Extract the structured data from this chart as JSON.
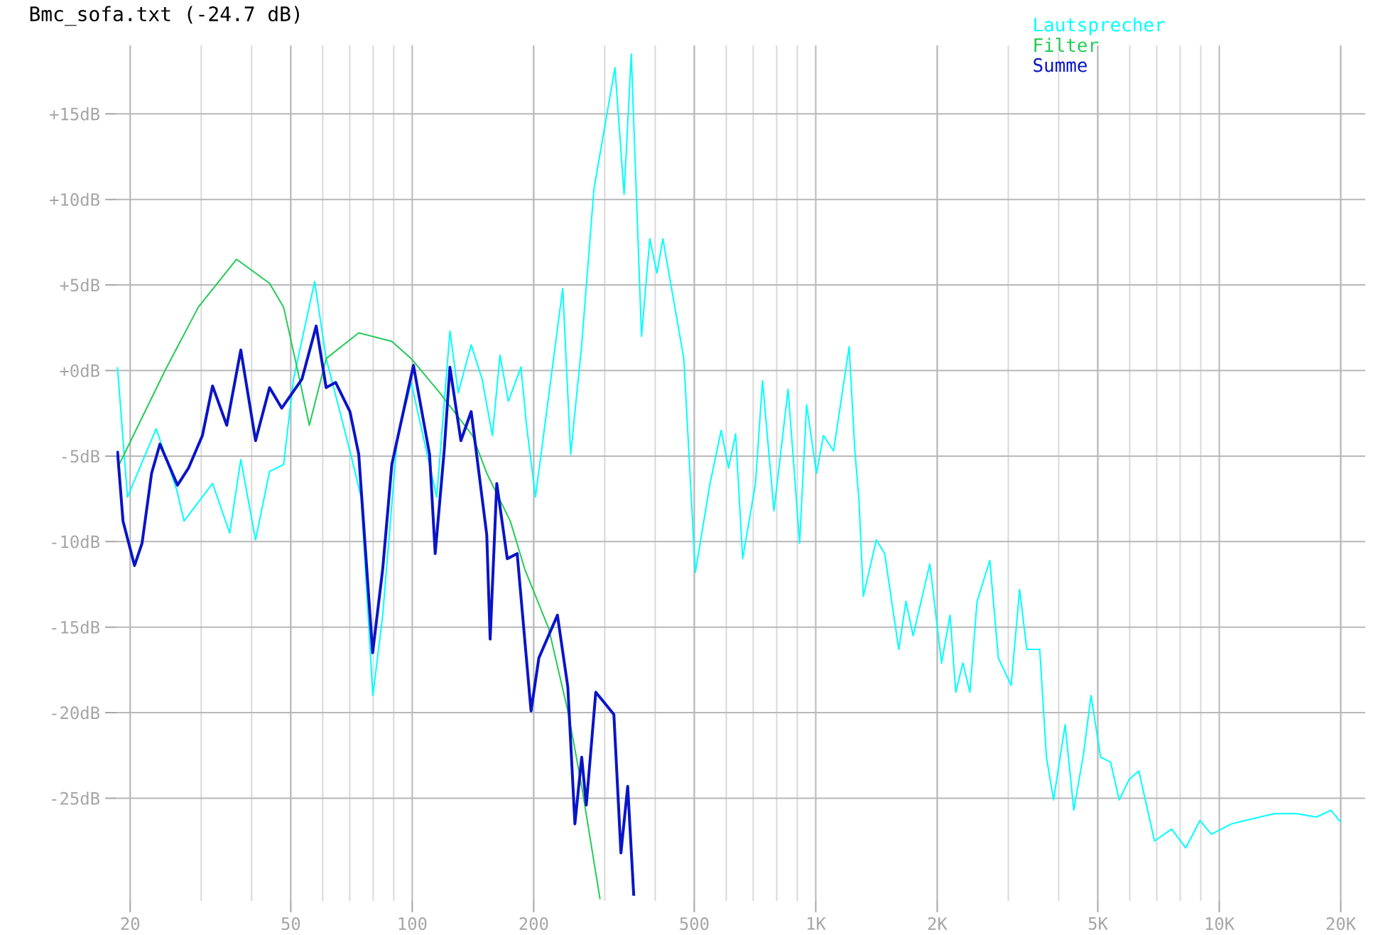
{
  "chart_data": {
    "type": "line",
    "title": "Bmc_sofa.txt  (-24.7 dB)",
    "log": "x",
    "grid": true,
    "legend": "top right",
    "xlim": [
      18.5,
      23000
    ],
    "ylim": [
      -31,
      19
    ],
    "xticks": [
      20,
      50,
      100,
      200,
      500,
      {
        "value": 1000,
        "label": "1K"
      },
      {
        "value": 2000,
        "label": "2K"
      },
      {
        "value": 5000,
        "label": "5K"
      },
      {
        "value": 10000,
        "label": "10K"
      },
      {
        "value": 20000,
        "label": "20K"
      }
    ],
    "yticks": [
      {
        "value": -25,
        "label": "-25dB"
      },
      {
        "value": -20,
        "label": "-20dB"
      },
      {
        "value": -15,
        "label": "-15dB"
      },
      {
        "value": -10,
        "label": "-10dB"
      },
      {
        "value": -5,
        "label": "-5dB"
      },
      {
        "value": 0,
        "label": "+0dB"
      },
      {
        "value": 5,
        "label": "+5dB"
      },
      {
        "value": 10,
        "label": "+10dB"
      },
      {
        "value": 15,
        "label": "+15dB"
      }
    ],
    "series": [
      {
        "name": "Lautsprecher",
        "color": "#00ffff",
        "x": [
          18.6,
          19.7,
          23.2,
          26.1,
          27.2,
          32.0,
          35.3,
          37.6,
          40.9,
          44.3,
          48.0,
          50.8,
          57.3,
          61.2,
          70.1,
          74.7,
          79.9,
          84.5,
          91.7,
          99.4,
          115,
          124,
          130,
          140,
          149,
          158,
          165,
          173,
          186,
          192,
          202,
          236,
          247,
          263,
          282,
          318,
          335,
          349,
          370,
          388,
          404,
          418,
          471,
          503,
          547,
          583,
          608,
          633,
          659,
          709,
          738,
          788,
          854,
          912,
          949,
          1004,
          1045,
          1107,
          1210,
          1250,
          1280,
          1312,
          1413,
          1482,
          1606,
          1673,
          1743,
          1918,
          2050,
          2152,
          2223,
          2315,
          2410,
          2510,
          2700,
          2835,
          3050,
          3200,
          3335,
          3590,
          3730,
          3885,
          4150,
          4360,
          4610,
          4810,
          5080,
          5380,
          5650,
          5980,
          6320,
          6910,
          7620,
          8260,
          8960,
          9560,
          10720,
          11610,
          13680,
          15560,
          17420,
          18900,
          20000
        ],
        "values": [
          0.2,
          -7.4,
          -3.4,
          -7.0,
          -8.8,
          -6.6,
          -9.5,
          -5.2,
          -9.9,
          -5.9,
          -5.5,
          -0.5,
          5.2,
          0.7,
          -4.7,
          -7.4,
          -19.0,
          -14.3,
          -4.1,
          -0.7,
          -7.4,
          2.3,
          -1.3,
          1.5,
          -0.5,
          -3.8,
          0.9,
          -1.8,
          0.2,
          -3.2,
          -7.4,
          4.8,
          -4.9,
          1.5,
          10.6,
          17.7,
          10.3,
          18.5,
          2.0,
          7.7,
          5.7,
          7.7,
          0.7,
          -11.8,
          -6.6,
          -3.5,
          -5.7,
          -3.7,
          -11.0,
          -6.6,
          -0.6,
          -8.2,
          -1.1,
          -10.1,
          -2.0,
          -6.0,
          -3.8,
          -4.7,
          1.4,
          -4.7,
          -7.6,
          -13.2,
          -9.9,
          -10.7,
          -16.3,
          -13.5,
          -15.5,
          -11.3,
          -17.1,
          -14.3,
          -18.8,
          -17.1,
          -18.8,
          -13.5,
          -11.1,
          -16.8,
          -18.4,
          -12.8,
          -16.3,
          -16.3,
          -22.6,
          -25.1,
          -20.7,
          -25.7,
          -22.4,
          -19.0,
          -22.6,
          -22.9,
          -25.1,
          -23.9,
          -23.4,
          -27.5,
          -26.8,
          -27.9,
          -26.3,
          -27.1,
          -26.5,
          -26.3,
          -25.9,
          -25.9,
          -26.1,
          -25.7,
          -26.4
        ]
      },
      {
        "name": "Filter",
        "color": "#22cc55",
        "x": [
          18.6,
          24.4,
          29.5,
          36.7,
          44.3,
          48,
          52,
          55.6,
          61.2,
          73.7,
          89,
          99.4,
          117,
          141,
          153,
          175,
          190,
          218,
          243,
          263,
          292
        ],
        "values": [
          -5.7,
          0,
          3.7,
          6.5,
          5.1,
          3.7,
          0,
          -3.2,
          0.7,
          2.2,
          1.7,
          0.7,
          -1.3,
          -3.8,
          -6.0,
          -8.8,
          -11.6,
          -15.1,
          -19.9,
          -24.3,
          -30.9
        ]
      },
      {
        "name": "Summe",
        "color": "#0a14c8",
        "x": [
          18.6,
          19.2,
          20.5,
          21.4,
          22.6,
          23.7,
          26.2,
          27.9,
          30.2,
          32.0,
          34.7,
          37.6,
          40.9,
          44.3,
          47.5,
          53.3,
          57.8,
          61.2,
          64.6,
          70.1,
          73.7,
          79.8,
          84.5,
          89.0,
          100.7,
          110.4,
          114,
          120,
          124,
          132,
          140,
          153,
          156,
          162,
          172,
          182,
          197,
          206,
          229,
          243,
          253,
          263,
          270,
          285,
          316,
          329,
          342,
          354
        ],
        "values": [
          -4.7,
          -8.8,
          -11.4,
          -10.1,
          -6.0,
          -4.3,
          -6.7,
          -5.7,
          -3.8,
          -0.9,
          -3.2,
          1.2,
          -4.1,
          -1.0,
          -2.2,
          -0.5,
          2.6,
          -1.0,
          -0.7,
          -2.4,
          -4.9,
          -16.5,
          -11.6,
          -5.5,
          0.3,
          -4.9,
          -10.7,
          -4.7,
          0.2,
          -4.1,
          -2.4,
          -9.6,
          -15.7,
          -6.6,
          -11.0,
          -10.7,
          -19.9,
          -16.8,
          -14.3,
          -18.5,
          -26.5,
          -22.6,
          -25.4,
          -18.8,
          -20.1,
          -28.2,
          -24.3,
          -30.7
        ]
      }
    ]
  }
}
